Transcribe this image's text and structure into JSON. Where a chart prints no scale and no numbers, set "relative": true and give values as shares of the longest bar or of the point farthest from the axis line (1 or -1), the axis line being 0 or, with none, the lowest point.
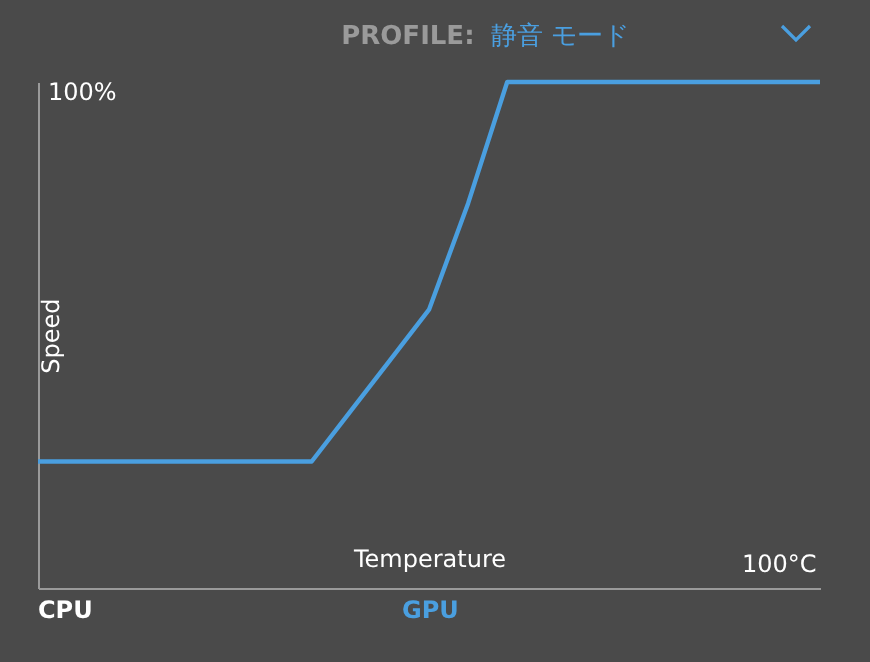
{
  "chart_data": {
    "type": "line",
    "title": "PROFILE:",
    "subtitle": "静音 モード",
    "xlabel": "Temperature",
    "ylabel": "Speed",
    "relative": true,
    "categories": [
      null,
      null,
      null,
      null,
      null,
      null,
      null,
      null,
      null,
      null,
      null,
      null,
      null,
      null,
      null,
      null,
      null,
      null,
      null,
      null,
      null
    ],
    "series": [
      {
        "color": "#4a9fe0",
        "values": [
          0.25,
          0.25,
          0.25,
          0.25,
          0.25,
          0.25,
          0.25,
          0.25,
          0.35,
          0.45,
          0.55,
          0.76,
          1,
          1,
          1,
          1,
          1,
          1,
          1,
          1,
          1
        ]
      }
    ],
    "grid": false,
    "legend": false,
    "marker": "none",
    "line_style": "solid",
    "annotations": [
      "CPU",
      "GPU",
      "100%",
      "100°C"
    ]
  }
}
